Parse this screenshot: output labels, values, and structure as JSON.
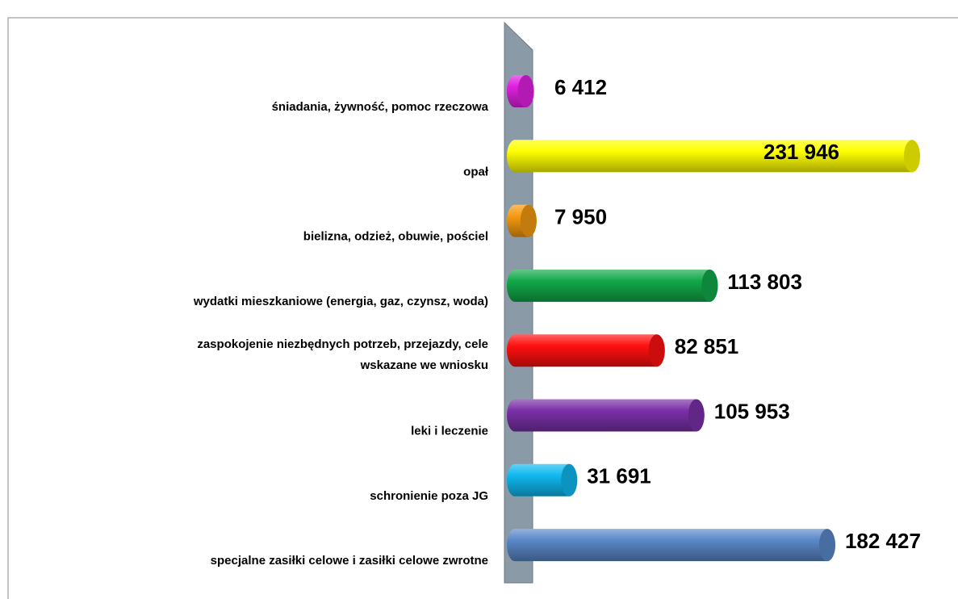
{
  "chart_data": {
    "type": "bar",
    "orientation": "horizontal",
    "categories": [
      "śniadania, żywność, pomoc rzeczowa",
      "opał",
      "bielizna, odzież, obuwie, pościel",
      "wydatki mieszkaniowe (energia, gaz, czynsz, woda)",
      "zaspokojenie niezbędnych potrzeb, przejazdy, cele\nwskazane we wniosku",
      "leki i leczenie",
      "schronienie poza JG",
      "specjalne zasiłki celowe i zasiłki celowe zwrotne"
    ],
    "values": [
      6412,
      231946,
      7950,
      113803,
      82851,
      105953,
      31691,
      182427
    ],
    "value_labels": [
      "6 412",
      "231 946",
      "7 950",
      "113 803",
      "82 851",
      "105 953",
      "31 691",
      "182 427"
    ],
    "colors": [
      "#e020e0",
      "#ffff00",
      "#f59a10",
      "#12a84a",
      "#ff1010",
      "#7a30a8",
      "#10b8f0",
      "#5a88c8"
    ]
  }
}
